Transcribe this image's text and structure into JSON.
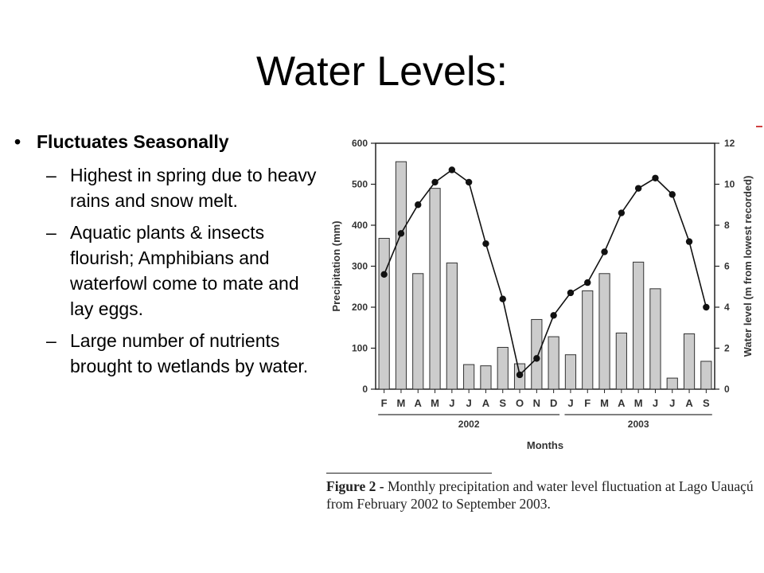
{
  "slide": {
    "title": "Water Levels:",
    "bullet_main": "Fluctuates Seasonally",
    "sub_bullets": [
      "Highest in spring due to heavy rains and snow melt.",
      "Aquatic plants & insects flourish; Amphibians and waterfowl come to mate and lay eggs.",
      "Large number of nutrients brought to wetlands by water."
    ],
    "bullet_glyph": "•",
    "dash_glyph": "–"
  },
  "figure": {
    "caption_label": "Figure 2 -",
    "caption_text": " Monthly precipitation and water level fluctuation at Lago Uauaçú from February 2002 to September 2003."
  },
  "colors": {
    "bar_fill": "#cccccc",
    "bar_stroke": "#333333",
    "line": "#111111",
    "accent": "#d04040"
  },
  "chart_data": {
    "type": "bar",
    "categories": [
      "F",
      "M",
      "A",
      "M",
      "J",
      "J",
      "A",
      "S",
      "O",
      "N",
      "D",
      "J",
      "F",
      "M",
      "A",
      "M",
      "J",
      "J",
      "A",
      "S"
    ],
    "year_groups": [
      {
        "label": "2002",
        "from": 0,
        "to": 10
      },
      {
        "label": "2003",
        "from": 11,
        "to": 19
      }
    ],
    "xlabel": "Months",
    "ylabel": "Precipitation (mm)",
    "ylim": [
      0,
      600
    ],
    "yticks": [
      0,
      100,
      200,
      300,
      400,
      500,
      600
    ],
    "ylabel_right": "Water level (m from lowest recorded)",
    "ylim_right": [
      0,
      12
    ],
    "yticks_right": [
      0,
      2,
      4,
      6,
      8,
      10,
      12
    ],
    "series": [
      {
        "kind": "bar",
        "axis": "left",
        "values": [
          368,
          555,
          282,
          490,
          308,
          60,
          57,
          102,
          62,
          170,
          128,
          84,
          240,
          282,
          137,
          310,
          245,
          27,
          135,
          68
        ]
      },
      {
        "kind": "line",
        "axis": "right",
        "values": [
          5.6,
          7.6,
          9.0,
          10.1,
          10.7,
          10.1,
          7.1,
          4.4,
          0.7,
          1.5,
          3.6,
          4.7,
          5.2,
          6.7,
          8.6,
          9.8,
          10.3,
          9.5,
          7.2,
          4.0
        ]
      }
    ],
    "grid": false,
    "legend": "none"
  }
}
